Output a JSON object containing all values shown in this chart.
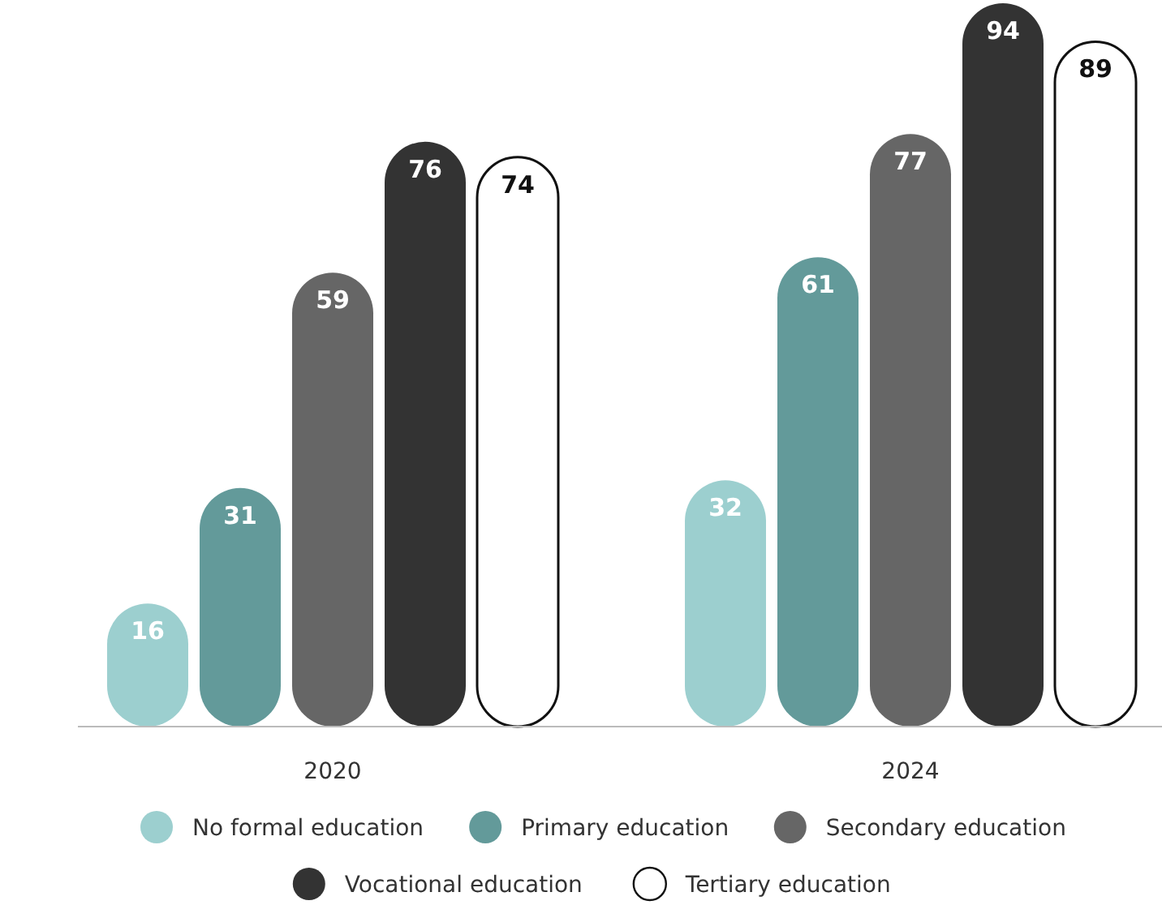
{
  "chart_data": {
    "type": "bar",
    "categories": [
      "2020",
      "2024"
    ],
    "series": [
      {
        "name": "No formal education",
        "color": "#9ccfcf",
        "values": [
          16,
          32
        ]
      },
      {
        "name": "Primary education",
        "color": "#639a9a",
        "values": [
          31,
          61
        ]
      },
      {
        "name": "Secondary education",
        "color": "#666666",
        "values": [
          59,
          77
        ]
      },
      {
        "name": "Vocational education",
        "color": "#333333",
        "values": [
          76,
          94
        ]
      },
      {
        "name": "Tertiary education",
        "color": "#ffffff",
        "values": [
          74,
          89
        ]
      }
    ],
    "data_labels": true,
    "legend": "bottom"
  }
}
